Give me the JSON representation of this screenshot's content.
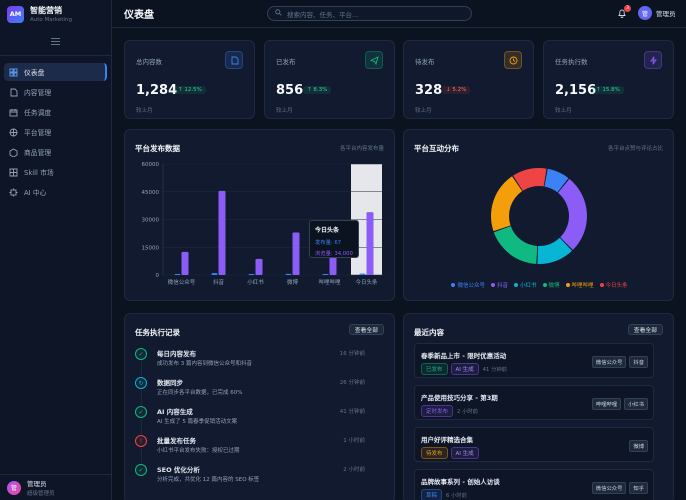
{
  "brand": {
    "logo": "AM",
    "name": "智能营销",
    "sub": "Auto Marketing"
  },
  "sidebar": {
    "items": [
      {
        "label": "仪表盘",
        "icon": "dashboard-icon",
        "active": true
      },
      {
        "label": "内容管理",
        "icon": "document-icon"
      },
      {
        "label": "任务调度",
        "icon": "calendar-icon"
      },
      {
        "label": "平台管理",
        "icon": "globe-icon"
      },
      {
        "label": "商品管理",
        "icon": "box-icon"
      },
      {
        "label": "Skill 市场",
        "icon": "grid-icon"
      },
      {
        "label": "AI 中心",
        "icon": "chip-icon"
      }
    ],
    "user": {
      "name": "管理员",
      "role": "超级管理员",
      "avatar": "管"
    }
  },
  "header": {
    "title": "仪表盘",
    "search_placeholder": "搜索内容、任务、平台...",
    "notification_count": "3",
    "user_name": "管理员",
    "user_avatar": "管"
  },
  "stats": [
    {
      "label": "总内容数",
      "value": "1,284",
      "change": "↑ 12.5%",
      "trend": "up",
      "foot": "较上月",
      "icon": "document-icon",
      "color": "#3b82f6"
    },
    {
      "label": "已发布",
      "value": "856",
      "change": "↑ 8.3%",
      "trend": "up",
      "foot": "较上月",
      "icon": "send-icon",
      "color": "#10b981"
    },
    {
      "label": "待发布",
      "value": "328",
      "change": "↓ 5.2%",
      "trend": "down",
      "foot": "较上月",
      "icon": "clock-icon",
      "color": "#f59e0b"
    },
    {
      "label": "任务执行数",
      "value": "2,156",
      "change": "↑ 15.8%",
      "trend": "up",
      "foot": "较上月",
      "icon": "lightning-icon",
      "color": "#8b5cf6"
    }
  ],
  "publish_panel": {
    "title": "平台发布数据",
    "note": "各平台内容发布量",
    "tooltip": {
      "title": "今日头条",
      "line1": "发布量: 67",
      "line2": "浏览量: 34,000"
    }
  },
  "interact_panel": {
    "title": "平台互动分布",
    "note": "各平台点赞与评论占比"
  },
  "chart_data": [
    {
      "type": "bar",
      "categories": [
        "微信公众号",
        "抖音",
        "小红书",
        "微博",
        "哔哩哔哩",
        "今日头条"
      ],
      "series": [
        {
          "name": "发布量",
          "values": [
            13,
            85,
            17,
            48,
            30,
            67
          ],
          "color": "#3b82f6"
        },
        {
          "name": "浏览量",
          "values": [
            12500,
            45500,
            8700,
            23000,
            19500,
            34000
          ],
          "color": "#8b5cf6"
        }
      ],
      "ylim": [
        0,
        60000
      ],
      "yticks": [
        "0",
        "15000",
        "30000",
        "45000",
        "60000"
      ],
      "highlight": "今日头条",
      "grid": true
    },
    {
      "type": "pie",
      "donut": true,
      "categories": [
        "微信公众号",
        "抖音",
        "小红书",
        "微博",
        "哔哩哔哩",
        "今日头条"
      ],
      "values": [
        8,
        27,
        13,
        19,
        21,
        12
      ],
      "colors": [
        "#3b82f6",
        "#8b5cf6",
        "#06b6d4",
        "#10b981",
        "#f59e0b",
        "#ef4444"
      ],
      "legend": "bottom"
    }
  ],
  "tasks_panel": {
    "title": "任务执行记录",
    "button": "查看全部",
    "items": [
      {
        "title": "每日内容发布",
        "desc": "成功发布 3 篇内容到微信公众号和抖音",
        "time": "16 分钟前",
        "status": "success"
      },
      {
        "title": "数据同步",
        "desc": "正在同步各平台数据，已完成 60%",
        "time": "26 分钟前",
        "status": "running"
      },
      {
        "title": "AI 内容生成",
        "desc": "AI 生成了 5 篇春季促销活动文案",
        "time": "41 分钟前",
        "status": "success"
      },
      {
        "title": "批量发布任务",
        "desc": "小红书平台发布失败：授权已过期",
        "time": "1 小时前",
        "status": "failed"
      },
      {
        "title": "SEO 优化分析",
        "desc": "分析完成，共优化 12 篇内容的 SEO 标签",
        "time": "2 小时前",
        "status": "success"
      }
    ]
  },
  "content_panel": {
    "title": "最近内容",
    "button": "查看全部",
    "items": [
      {
        "title": "春季新品上市 - 限时优惠活动",
        "status": "已发布",
        "status_color": "#10b981",
        "ai": "AI 生成",
        "time": "41 分钟前",
        "platforms": [
          "微信公众号",
          "抖音"
        ]
      },
      {
        "title": "产品使用技巧分享 - 第3期",
        "status": "定时发布",
        "status_color": "#8b5cf6",
        "ai": "",
        "time": "2 小时前",
        "platforms": [
          "哔哩哔哩",
          "小红书"
        ]
      },
      {
        "title": "用户好评精选合集",
        "status": "待发布",
        "status_color": "#f59e0b",
        "ai": "AI 生成",
        "time": "",
        "platforms": [
          "微博"
        ]
      },
      {
        "title": "品牌故事系列 - 创始人访谈",
        "status": "草稿",
        "status_color": "#3b82f6",
        "ai": "",
        "time": "6 小时前",
        "platforms": [
          "微信公众号",
          "知乎"
        ]
      }
    ]
  }
}
